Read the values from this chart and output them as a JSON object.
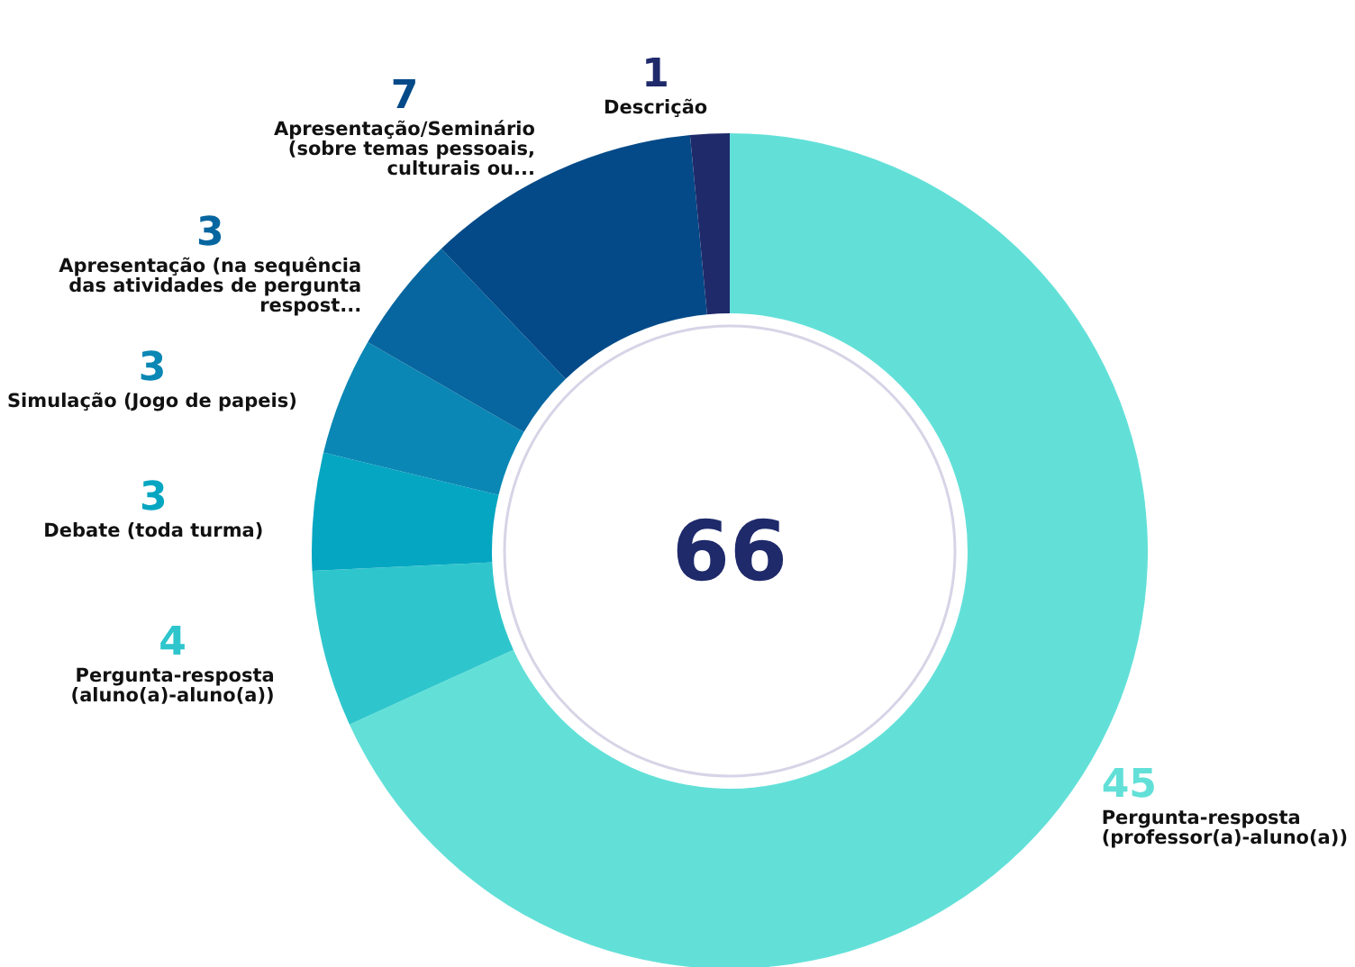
{
  "chart_data": {
    "type": "donut",
    "categories": [
      "Pergunta-resposta (professor(a)-aluno(a))",
      "Pergunta-resposta (aluno(a)-aluno(a))",
      "Debate (toda turma)",
      "Simulação (Jogo de papeis)",
      "Apresentação (na sequência das atividades de pergunta respost...",
      "Apresentação/Seminário (sobre temas pessoais, culturais ou...",
      "Descrição"
    ],
    "values": [
      45,
      4,
      3,
      3,
      3,
      7,
      1
    ],
    "colors": [
      "#62e0d8",
      "#2ec6cc",
      "#05a6c1",
      "#0a87b4",
      "#07669f",
      "#044a88",
      "#1f2a6b"
    ],
    "data_labels": true,
    "annotations": [
      "66"
    ]
  }
}
